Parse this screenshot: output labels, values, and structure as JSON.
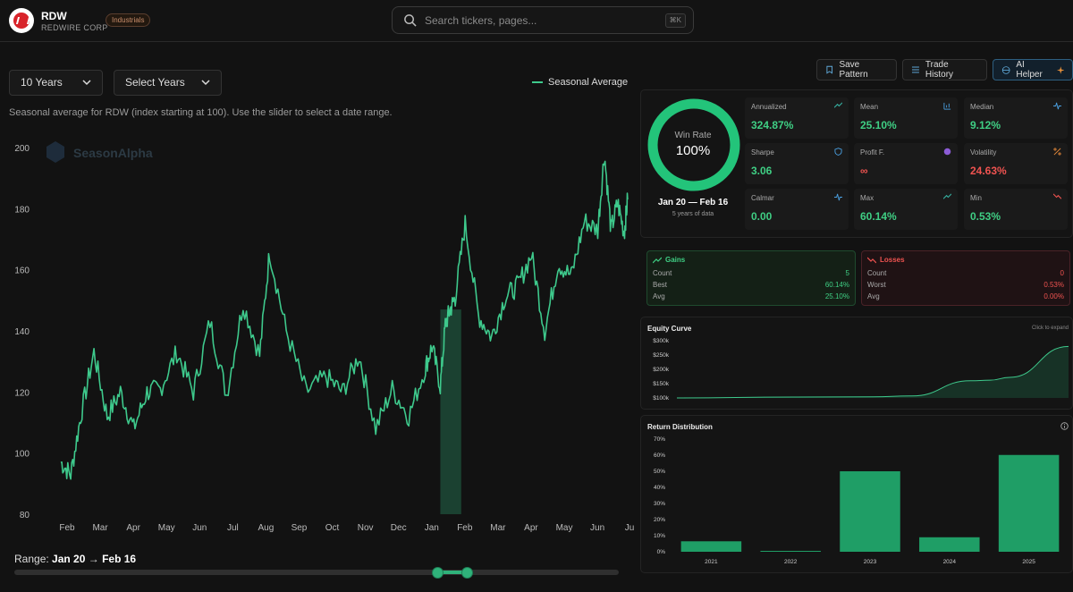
{
  "header": {
    "ticker": "RDW",
    "company": "REDWIRE CORP",
    "sector": "Industrials",
    "search_placeholder": "Search tickers, pages...",
    "search_shortcut": "⌘K"
  },
  "controls": {
    "period": "10 Years",
    "years": "Select Years",
    "legend": "Seasonal Average",
    "subtitle": "Seasonal average for RDW (index starting at 100). Use the slider to select a date range.",
    "watermark": "SeasonAlpha"
  },
  "range": {
    "prefix": "Range:",
    "start": "Jan 20",
    "arrow": "→",
    "end": "Feb 16"
  },
  "toolbar": {
    "save": "Save Pattern",
    "history": "Trade History",
    "ai": "AI Helper"
  },
  "winrate": {
    "label": "Win Rate",
    "value": "100%",
    "dates": "Jan 20 — Feb 16",
    "years": "5 years of data"
  },
  "stats": [
    {
      "name": "Annualized",
      "value": "324.87%",
      "color": "green",
      "icon": "trend-up-icon"
    },
    {
      "name": "Mean",
      "value": "25.10%",
      "color": "green",
      "icon": "bar-chart-icon"
    },
    {
      "name": "Median",
      "value": "9.12%",
      "color": "green",
      "icon": "pulse-icon"
    },
    {
      "name": "Sharpe",
      "value": "3.06",
      "color": "green",
      "icon": "shield-icon"
    },
    {
      "name": "Profit F.",
      "value": "∞",
      "color": "red",
      "icon": "target-icon"
    },
    {
      "name": "Volatility",
      "value": "24.63%",
      "color": "red",
      "icon": "percent-icon"
    },
    {
      "name": "Calmar",
      "value": "0.00",
      "color": "green",
      "icon": "pulse-icon"
    },
    {
      "name": "Max",
      "value": "60.14%",
      "color": "green",
      "icon": "trend-up-icon"
    },
    {
      "name": "Min",
      "value": "0.53%",
      "color": "green",
      "icon": "trend-down-icon"
    }
  ],
  "gains": {
    "title": "Gains",
    "count_label": "Count",
    "count": "5",
    "best_label": "Best",
    "best": "60.14%",
    "avg_label": "Avg",
    "avg": "25.10%"
  },
  "losses": {
    "title": "Losses",
    "count_label": "Count",
    "count": "0",
    "worst_label": "Worst",
    "worst": "0.53%",
    "avg_label": "Avg",
    "avg": "0.00%"
  },
  "equity": {
    "title": "Equity Curve",
    "hint": "Click to expand"
  },
  "distribution": {
    "title": "Return Distribution"
  },
  "colors": {
    "accent": "#3ec98c",
    "bar": "#1f9e66",
    "loss": "#ef5350"
  },
  "chart_data": [
    {
      "type": "line",
      "title": "Seasonal Average",
      "ylim": [
        80,
        200
      ],
      "yticks": [
        80,
        100,
        120,
        140,
        160,
        180,
        200
      ],
      "xticks": [
        "Feb",
        "Mar",
        "Apr",
        "May",
        "Jun",
        "Jul",
        "Aug",
        "Sep",
        "Oct",
        "Nov",
        "Dec",
        "Jan",
        "Feb",
        "Mar",
        "Apr",
        "May",
        "Jun",
        "Jul"
      ],
      "highlight": {
        "from": "Jan 20",
        "to": "Feb 16"
      },
      "series": [
        {
          "name": "Seasonal Average",
          "x": [
            0,
            0.3,
            0.6,
            1.0,
            1.4,
            1.8,
            2.2,
            2.6,
            3.0,
            3.5,
            4.0,
            4.5,
            5.0,
            5.5,
            6.0,
            6.3,
            6.8,
            7.4,
            8.0,
            8.5,
            9.0,
            9.5,
            10.0,
            10.5,
            11.0,
            11.2,
            11.45,
            11.6,
            11.75,
            11.9,
            12.2,
            12.6,
            13.0,
            13.4,
            13.8,
            14.2,
            14.6,
            15.0,
            15.4,
            15.8,
            16.2,
            16.4,
            16.6,
            16.8,
            17.0,
            17.1
          ],
          "y": [
            97,
            93,
            112,
            133,
            112,
            120,
            108,
            120,
            121,
            133,
            120,
            143,
            119,
            149,
            132,
            166,
            140,
            120,
            125,
            120,
            132,
            108,
            121,
            112,
            128,
            135,
            122,
            142,
            147,
            151,
            175,
            145,
            138,
            151,
            155,
            165,
            140,
            162,
            158,
            176,
            173,
            198,
            173,
            182,
            172,
            183
          ]
        }
      ]
    },
    {
      "type": "area",
      "title": "Equity Curve",
      "ylim": [
        100000,
        300000
      ],
      "yticks": [
        "$100k",
        "$150k",
        "$200k",
        "$250k",
        "$300k"
      ],
      "x": [
        0,
        0.3,
        0.5,
        0.6,
        0.75,
        0.8,
        0.85,
        1.0
      ],
      "values": [
        100000,
        103000,
        104000,
        107000,
        160000,
        162000,
        172000,
        280000
      ]
    },
    {
      "type": "bar",
      "title": "Return Distribution",
      "categories": [
        "2021",
        "2022",
        "2023",
        "2024",
        "2025"
      ],
      "values": [
        6.5,
        0.53,
        50,
        9,
        60.14
      ],
      "ylim": [
        0,
        70
      ],
      "yticks": [
        "0%",
        "10%",
        "20%",
        "30%",
        "40%",
        "50%",
        "60%",
        "70%"
      ]
    }
  ]
}
